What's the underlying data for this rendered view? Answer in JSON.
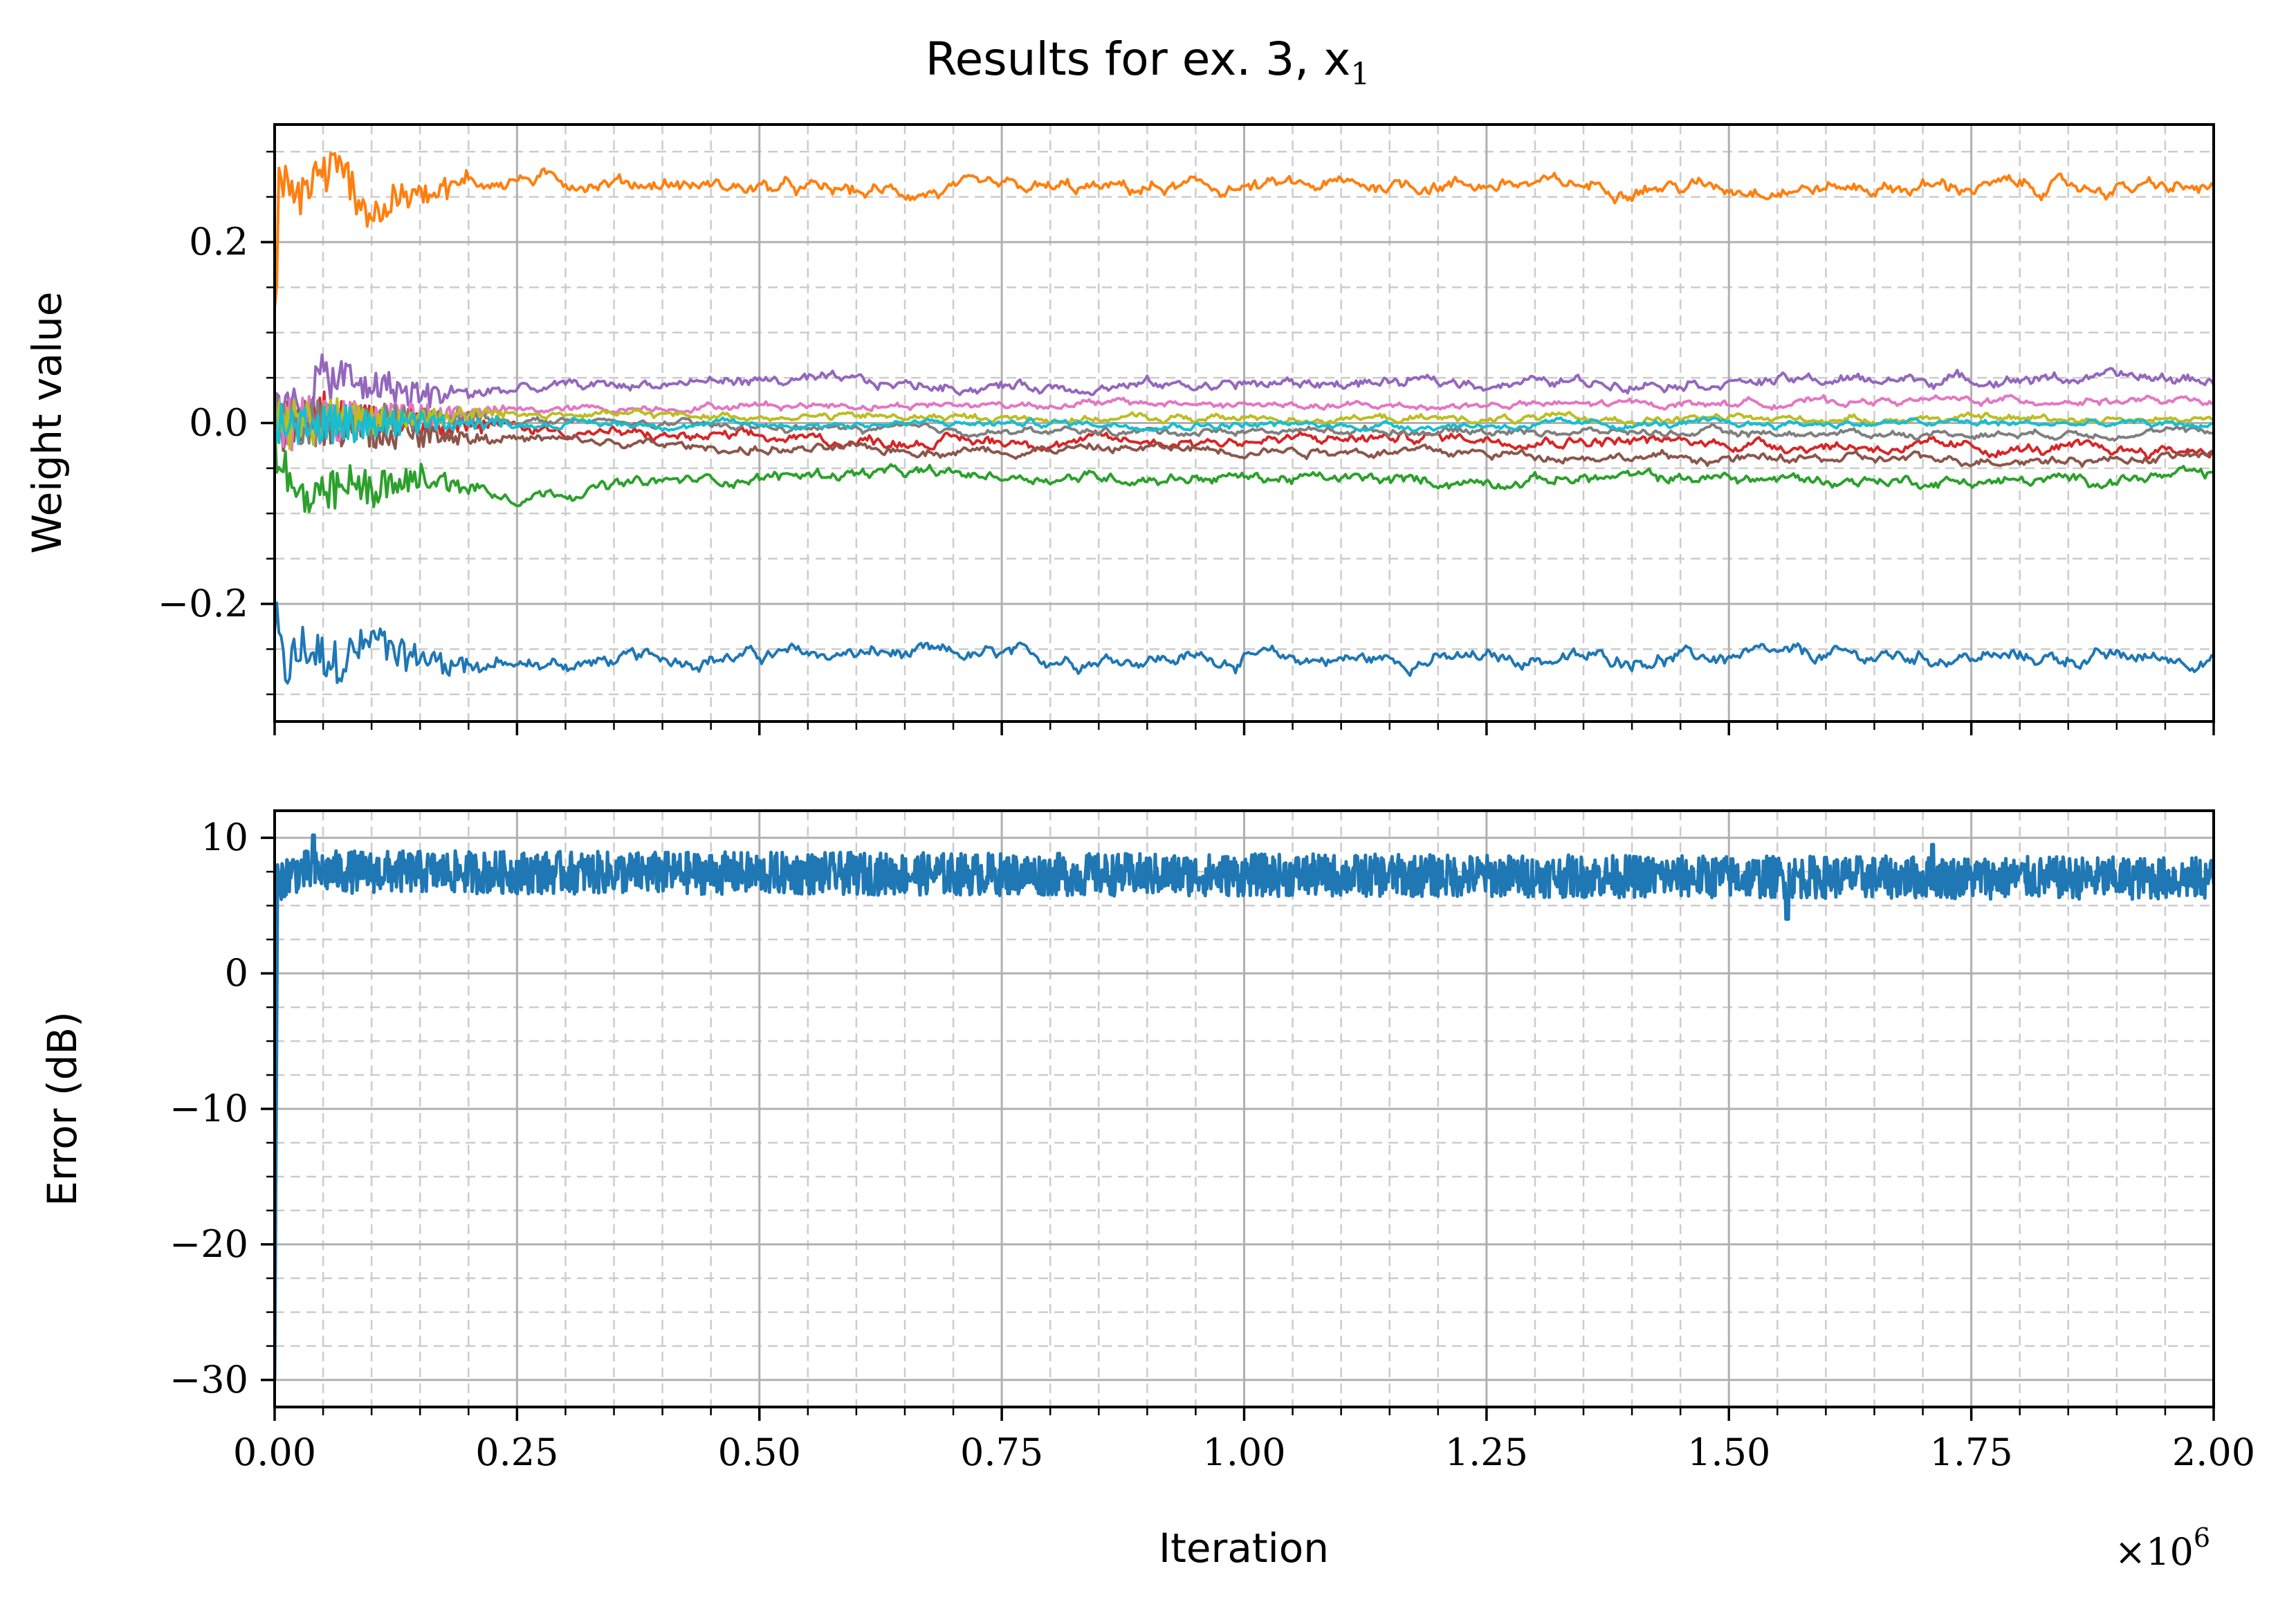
{
  "chart_data": [
    {
      "type": "line",
      "title": "Results for ex. 3, x",
      "title_subscript": "1",
      "xlabel": "",
      "ylabel": "Weight value",
      "xlim": [
        0,
        2000000
      ],
      "ylim": [
        -0.33,
        0.33
      ],
      "x_ticks": [
        0,
        250000,
        500000,
        750000,
        1000000,
        1250000,
        1500000,
        1750000,
        2000000
      ],
      "y_ticks": [
        -0.2,
        0.0,
        0.2
      ],
      "y_tick_labels": [
        "−0.2",
        "0.0",
        "0.2"
      ],
      "grid": "major solid, minor dashed",
      "series": [
        {
          "color": "#1f77b4",
          "x": [
            0,
            10000,
            30000,
            60000,
            100000,
            150000,
            250000,
            400000,
            600000,
            800000,
            1000000,
            1200000,
            1400000,
            1600000,
            1800000,
            2000000
          ],
          "values": [
            -0.22,
            -0.28,
            -0.25,
            -0.27,
            -0.24,
            -0.26,
            -0.27,
            -0.26,
            -0.255,
            -0.26,
            -0.26,
            -0.262,
            -0.26,
            -0.258,
            -0.26,
            -0.26
          ],
          "noise": 0.008
        },
        {
          "color": "#ff7f0e",
          "x": [
            0,
            5000,
            15000,
            40000,
            70000,
            100000,
            150000,
            250000,
            400000,
            600000,
            800000,
            1000000,
            1200000,
            1400000,
            1600000,
            1800000,
            2000000
          ],
          "values": [
            0.1,
            0.28,
            0.24,
            0.27,
            0.28,
            0.23,
            0.26,
            0.27,
            0.265,
            0.255,
            0.258,
            0.26,
            0.265,
            0.262,
            0.26,
            0.262,
            0.258
          ],
          "noise": 0.008
        },
        {
          "color": "#2ca02c",
          "x": [
            0,
            20000,
            80000,
            150000,
            250000,
            400000,
            600000,
            800000,
            1000000,
            1200000,
            1400000,
            1600000,
            1800000,
            2000000
          ],
          "values": [
            -0.02,
            -0.09,
            -0.07,
            -0.06,
            -0.08,
            -0.065,
            -0.055,
            -0.06,
            -0.06,
            -0.065,
            -0.06,
            -0.063,
            -0.065,
            -0.058
          ],
          "noise": 0.006
        },
        {
          "color": "#d62728",
          "x": [
            0,
            100000,
            250000,
            400000,
            600000,
            800000,
            1000000,
            1200000,
            1400000,
            1600000,
            1800000,
            2000000
          ],
          "values": [
            0.0,
            0.01,
            -0.005,
            -0.015,
            -0.02,
            -0.02,
            -0.02,
            -0.015,
            -0.02,
            -0.025,
            -0.03,
            -0.03
          ],
          "noise": 0.006
        },
        {
          "color": "#9467bd",
          "x": [
            0,
            50000,
            150000,
            300000,
            500000,
            700000,
            900000,
            1100000,
            1300000,
            1500000,
            1700000,
            1900000,
            2000000
          ],
          "values": [
            0.0,
            0.05,
            0.03,
            0.04,
            0.048,
            0.04,
            0.042,
            0.044,
            0.045,
            0.046,
            0.048,
            0.05,
            0.048
          ],
          "noise": 0.006
        },
        {
          "color": "#8c564b",
          "x": [
            0,
            150000,
            300000,
            500000,
            700000,
            900000,
            1100000,
            1300000,
            1500000,
            1700000,
            1900000,
            2000000
          ],
          "values": [
            0.0,
            -0.01,
            -0.02,
            -0.03,
            -0.03,
            -0.028,
            -0.03,
            -0.035,
            -0.04,
            -0.04,
            -0.04,
            -0.035
          ],
          "noise": 0.005
        },
        {
          "color": "#e377c2",
          "x": [
            0,
            150000,
            300000,
            500000,
            700000,
            900000,
            1100000,
            1300000,
            1500000,
            1700000,
            1900000,
            2000000
          ],
          "values": [
            0.0,
            0.01,
            0.015,
            0.02,
            0.02,
            0.022,
            0.018,
            0.02,
            0.022,
            0.025,
            0.025,
            0.022
          ],
          "noise": 0.004
        },
        {
          "color": "#7f7f7f",
          "x": [
            0,
            200000,
            500000,
            800000,
            1100000,
            1400000,
            1700000,
            2000000
          ],
          "values": [
            0.0,
            0.005,
            -0.005,
            -0.01,
            -0.008,
            -0.01,
            -0.012,
            -0.01
          ],
          "noise": 0.004
        },
        {
          "color": "#bcbd22",
          "x": [
            0,
            200000,
            500000,
            800000,
            1100000,
            1400000,
            1700000,
            2000000
          ],
          "values": [
            0.0,
            0.01,
            0.008,
            0.005,
            0.005,
            0.004,
            0.005,
            0.005
          ],
          "noise": 0.004
        },
        {
          "color": "#17becf",
          "x": [
            0,
            200000,
            500000,
            800000,
            1100000,
            1400000,
            1700000,
            2000000
          ],
          "values": [
            0.0,
            0.0,
            -0.002,
            0.0,
            -0.003,
            -0.002,
            0.0,
            -0.002
          ],
          "noise": 0.004
        }
      ]
    },
    {
      "type": "line",
      "title": "",
      "xlabel": "Iteration",
      "xscale_label": "×10",
      "xscale_exponent": "6",
      "ylabel": "Error (dB)",
      "xlim": [
        0,
        2000000
      ],
      "ylim": [
        -32,
        12
      ],
      "x_ticks": [
        0,
        250000,
        500000,
        750000,
        1000000,
        1250000,
        1500000,
        1750000,
        2000000
      ],
      "x_tick_labels": [
        "0.00",
        "0.25",
        "0.50",
        "0.75",
        "1.00",
        "1.25",
        "1.50",
        "1.75",
        "2.00"
      ],
      "y_ticks": [
        -30,
        -20,
        -10,
        0,
        10
      ],
      "y_tick_labels": [
        "−30",
        "−20",
        "−10",
        "0",
        "10"
      ],
      "grid": "major solid, minor dashed",
      "series": [
        {
          "color": "#1f77b4",
          "x": [
            0,
            3000,
            6000,
            20000,
            2000000
          ],
          "values": [
            -30,
            7.5,
            7.0,
            7.5,
            7.0
          ],
          "band": [
            5.5,
            9.0
          ],
          "dips": [
            [
              1560000,
              4.0
            ],
            [
              1710000,
              9.5
            ],
            [
              40000,
              10.2
            ]
          ]
        }
      ]
    }
  ]
}
